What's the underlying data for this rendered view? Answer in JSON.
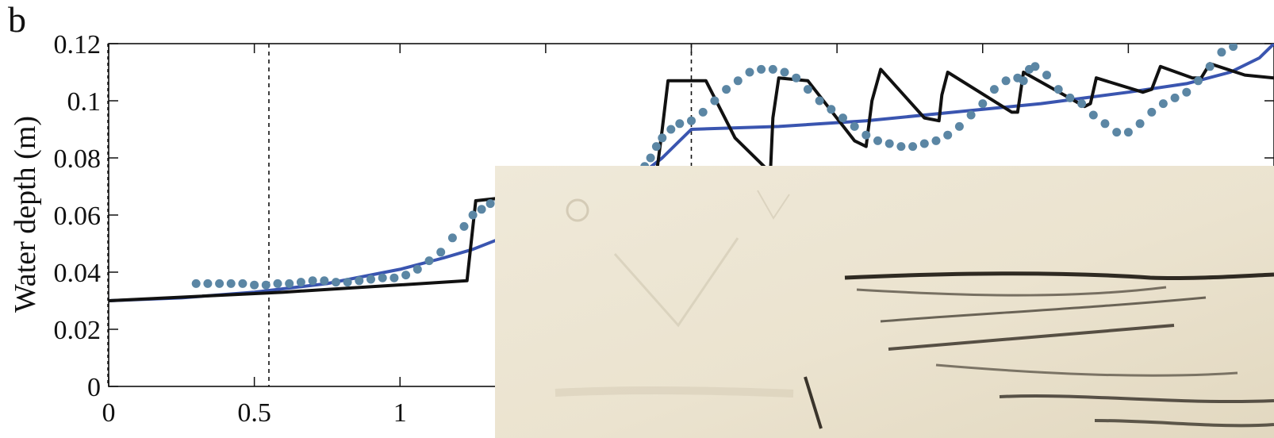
{
  "panel_label": "b",
  "chart_data": {
    "type": "line",
    "xlabel": "",
    "ylabel": "Water depth (m)",
    "xlim": [
      0,
      4
    ],
    "ylim": [
      0,
      0.12
    ],
    "x_ticks": [
      {
        "value": 0,
        "label": "0"
      },
      {
        "value": 0.5,
        "label": "0.5"
      },
      {
        "value": 1,
        "label": "1"
      }
    ],
    "y_ticks": [
      {
        "value": 0,
        "label": "0"
      },
      {
        "value": 0.02,
        "label": "0.02"
      },
      {
        "value": 0.04,
        "label": "0.04"
      },
      {
        "value": 0.06,
        "label": "0.06"
      },
      {
        "value": 0.08,
        "label": "0.08"
      },
      {
        "value": 0.1,
        "label": "0.1"
      },
      {
        "value": 0.12,
        "label": "0.12"
      }
    ],
    "vertical_reference_lines": [
      0.55,
      2.0
    ],
    "series": [
      {
        "kind": "line",
        "color": "#3a55b0",
        "points": [
          [
            0,
            0.03
          ],
          [
            0.25,
            0.031
          ],
          [
            0.5,
            0.033
          ],
          [
            0.75,
            0.036
          ],
          [
            1.0,
            0.041
          ],
          [
            1.15,
            0.045
          ],
          [
            1.25,
            0.048
          ],
          [
            1.35,
            0.052
          ],
          [
            1.5,
            0.058
          ],
          [
            1.6,
            0.062
          ],
          [
            1.7,
            0.067
          ],
          [
            1.8,
            0.072
          ],
          [
            1.9,
            0.08
          ],
          [
            1.95,
            0.085
          ],
          [
            2.0,
            0.09
          ],
          [
            2.3,
            0.091
          ],
          [
            2.6,
            0.093
          ],
          [
            2.9,
            0.096
          ],
          [
            3.2,
            0.099
          ],
          [
            3.5,
            0.103
          ],
          [
            3.7,
            0.106
          ],
          [
            3.85,
            0.11
          ],
          [
            3.95,
            0.115
          ],
          [
            4.0,
            0.12
          ]
        ]
      },
      {
        "kind": "line",
        "color": "#111111",
        "points": [
          [
            0,
            0.03
          ],
          [
            0.6,
            0.033
          ],
          [
            1.23,
            0.037
          ],
          [
            1.26,
            0.065
          ],
          [
            1.35,
            0.066
          ],
          [
            1.42,
            0.066
          ],
          [
            1.6,
            0.056
          ],
          [
            1.7,
            0.052
          ],
          [
            1.84,
            0.052
          ],
          [
            1.86,
            0.064
          ],
          [
            1.88,
            0.074
          ],
          [
            1.9,
            0.09
          ],
          [
            1.92,
            0.107
          ],
          [
            2.05,
            0.107
          ],
          [
            2.15,
            0.087
          ],
          [
            2.25,
            0.077
          ],
          [
            2.27,
            0.072
          ],
          [
            2.28,
            0.094
          ],
          [
            2.3,
            0.108
          ],
          [
            2.4,
            0.107
          ],
          [
            2.56,
            0.086
          ],
          [
            2.6,
            0.084
          ],
          [
            2.62,
            0.1
          ],
          [
            2.65,
            0.111
          ],
          [
            2.8,
            0.094
          ],
          [
            2.85,
            0.093
          ],
          [
            2.86,
            0.102
          ],
          [
            2.88,
            0.11
          ],
          [
            3.1,
            0.096
          ],
          [
            3.12,
            0.096
          ],
          [
            3.14,
            0.11
          ],
          [
            3.35,
            0.098
          ],
          [
            3.37,
            0.099
          ],
          [
            3.39,
            0.108
          ],
          [
            3.55,
            0.103
          ],
          [
            3.58,
            0.104
          ],
          [
            3.61,
            0.112
          ],
          [
            3.72,
            0.108
          ],
          [
            3.75,
            0.108
          ],
          [
            3.78,
            0.113
          ],
          [
            3.9,
            0.109
          ],
          [
            4.0,
            0.108
          ]
        ]
      },
      {
        "kind": "scatter",
        "color": "#5b86a4",
        "points": [
          [
            0.3,
            0.036
          ],
          [
            0.34,
            0.036
          ],
          [
            0.38,
            0.036
          ],
          [
            0.42,
            0.036
          ],
          [
            0.46,
            0.036
          ],
          [
            0.5,
            0.0355
          ],
          [
            0.54,
            0.0355
          ],
          [
            0.58,
            0.036
          ],
          [
            0.62,
            0.036
          ],
          [
            0.66,
            0.0365
          ],
          [
            0.7,
            0.037
          ],
          [
            0.74,
            0.037
          ],
          [
            0.78,
            0.0365
          ],
          [
            0.82,
            0.0365
          ],
          [
            0.86,
            0.037
          ],
          [
            0.9,
            0.0375
          ],
          [
            0.94,
            0.038
          ],
          [
            0.98,
            0.038
          ],
          [
            1.02,
            0.039
          ],
          [
            1.06,
            0.041
          ],
          [
            1.1,
            0.044
          ],
          [
            1.14,
            0.047
          ],
          [
            1.18,
            0.052
          ],
          [
            1.22,
            0.056
          ],
          [
            1.25,
            0.06
          ],
          [
            1.28,
            0.062
          ],
          [
            1.31,
            0.064
          ],
          [
            1.34,
            0.065
          ],
          [
            1.8,
            0.075
          ],
          [
            1.84,
            0.077
          ],
          [
            1.86,
            0.08
          ],
          [
            1.88,
            0.084
          ],
          [
            1.9,
            0.087
          ],
          [
            1.93,
            0.09
          ],
          [
            1.96,
            0.092
          ],
          [
            2.0,
            0.093
          ],
          [
            2.04,
            0.096
          ],
          [
            2.08,
            0.1
          ],
          [
            2.12,
            0.104
          ],
          [
            2.16,
            0.107
          ],
          [
            2.2,
            0.11
          ],
          [
            2.24,
            0.111
          ],
          [
            2.28,
            0.111
          ],
          [
            2.32,
            0.11
          ],
          [
            2.36,
            0.108
          ],
          [
            2.4,
            0.104
          ],
          [
            2.44,
            0.1
          ],
          [
            2.48,
            0.097
          ],
          [
            2.52,
            0.094
          ],
          [
            2.56,
            0.091
          ],
          [
            2.6,
            0.088
          ],
          [
            2.64,
            0.086
          ],
          [
            2.68,
            0.085
          ],
          [
            2.72,
            0.084
          ],
          [
            2.76,
            0.084
          ],
          [
            2.8,
            0.085
          ],
          [
            2.84,
            0.086
          ],
          [
            2.88,
            0.088
          ],
          [
            2.92,
            0.091
          ],
          [
            2.96,
            0.095
          ],
          [
            3.0,
            0.099
          ],
          [
            3.04,
            0.104
          ],
          [
            3.08,
            0.107
          ],
          [
            3.12,
            0.108
          ],
          [
            3.14,
            0.107
          ],
          [
            3.16,
            0.111
          ],
          [
            3.18,
            0.112
          ],
          [
            3.22,
            0.109
          ],
          [
            3.26,
            0.104
          ],
          [
            3.3,
            0.101
          ],
          [
            3.34,
            0.099
          ],
          [
            3.38,
            0.095
          ],
          [
            3.42,
            0.092
          ],
          [
            3.46,
            0.089
          ],
          [
            3.5,
            0.089
          ],
          [
            3.54,
            0.092
          ],
          [
            3.58,
            0.096
          ],
          [
            3.62,
            0.099
          ],
          [
            3.66,
            0.101
          ],
          [
            3.7,
            0.103
          ],
          [
            3.74,
            0.107
          ],
          [
            3.78,
            0.112
          ],
          [
            3.82,
            0.117
          ],
          [
            3.86,
            0.119
          ]
        ]
      }
    ],
    "grid": false,
    "overlay": "photograph of a wave front covering the lower-right part of the plot"
  }
}
